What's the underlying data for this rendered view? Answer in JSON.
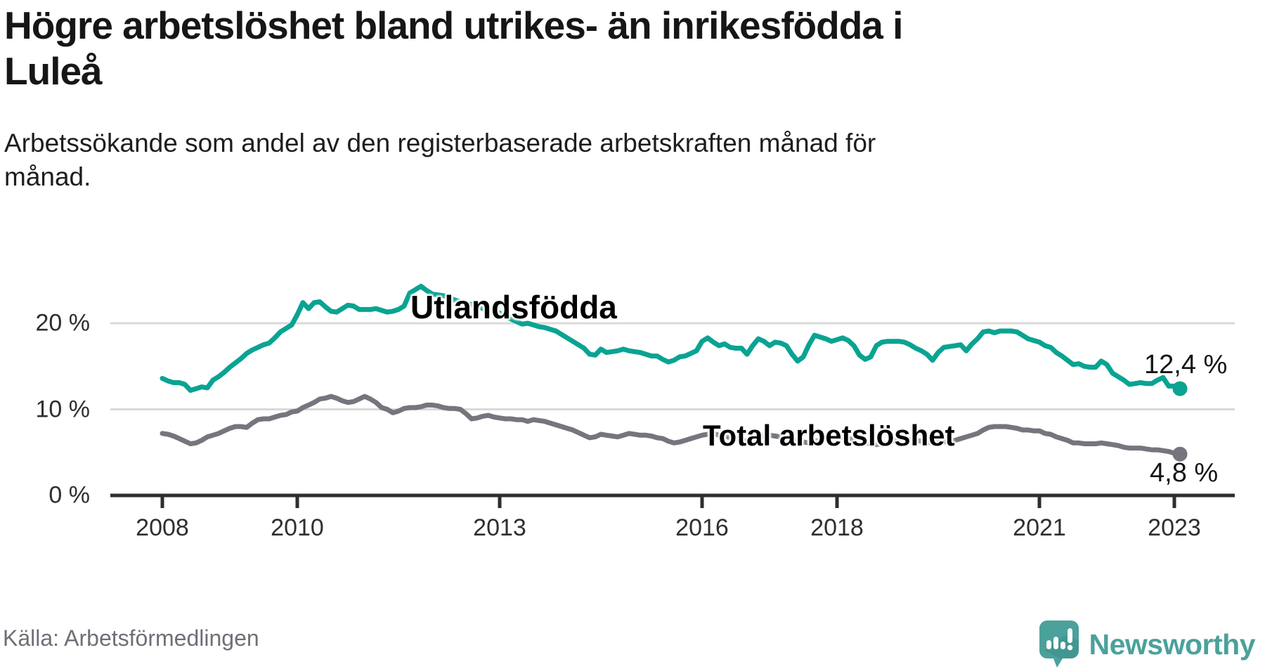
{
  "title": "Högre arbetslöshet bland utrikes- än inrikesfödda i Luleå",
  "subtitle": "Arbetssökande som andel av den registerbaserade arbetskraften månad för månad.",
  "source": "Källa: Arbetsförmedlingen",
  "branding": {
    "name": "Newsworthy",
    "icon": "speech-bubble-bar-chart-icon",
    "color": "#4ba19b"
  },
  "colors": {
    "foreign_born_line": "#0aa392",
    "total_line": "#75757e",
    "axis": "#2e2e2e",
    "gridline": "#d9d9d9",
    "text": "#161616",
    "muted_text": "#6f6f77"
  },
  "chart_data": {
    "type": "line",
    "title": "Högre arbetslöshet bland utrikes- än inrikesfödda i Luleå",
    "subtitle": "Arbetssökande som andel av den registerbaserade arbetskraften månad för månad.",
    "x_unit": "month",
    "x_start": "2008-01",
    "x_end": "2023-02",
    "grid": "horizontal",
    "legend_position": "inline-labels",
    "ylim": [
      0,
      25
    ],
    "y_ticks": [
      {
        "value": 0,
        "label": "0 %"
      },
      {
        "value": 10,
        "label": "10 %"
      },
      {
        "value": 20,
        "label": "20 %"
      }
    ],
    "x_ticks": [
      {
        "year": 2008,
        "label": "2008"
      },
      {
        "year": 2010,
        "label": "2010"
      },
      {
        "year": 2013,
        "label": "2013"
      },
      {
        "year": 2016,
        "label": "2016"
      },
      {
        "year": 2018,
        "label": "2018"
      },
      {
        "year": 2021,
        "label": "2021"
      },
      {
        "year": 2023,
        "label": "2023"
      }
    ],
    "series": [
      {
        "name": "Utlandsfödda",
        "color": "#0aa392",
        "end_label": "12,4 %",
        "last_value": 12.4,
        "values": [
          13.6,
          13.3,
          13.1,
          13.1,
          12.9,
          12.2,
          12.4,
          12.6,
          12.5,
          13.4,
          13.8,
          14.3,
          14.9,
          15.4,
          15.9,
          16.5,
          16.9,
          17.2,
          17.5,
          17.7,
          18.3,
          19.0,
          19.4,
          19.8,
          21.0,
          22.4,
          21.7,
          22.4,
          22.5,
          21.9,
          21.4,
          21.3,
          21.7,
          22.1,
          22.0,
          21.6,
          21.6,
          21.6,
          21.7,
          21.5,
          21.3,
          21.4,
          21.6,
          22.0,
          23.5,
          23.9,
          24.3,
          23.8,
          23.4,
          23.3,
          23.2,
          23.0,
          22.7,
          22.5,
          22.3,
          22.2,
          22.0,
          21.7,
          21.5,
          21.3,
          21.2,
          20.8,
          20.5,
          20.2,
          19.9,
          20.0,
          19.8,
          19.6,
          19.5,
          19.3,
          19.1,
          18.7,
          18.3,
          17.9,
          17.5,
          17.1,
          16.4,
          16.3,
          17.0,
          16.6,
          16.7,
          16.8,
          17.0,
          16.8,
          16.7,
          16.6,
          16.4,
          16.2,
          16.2,
          15.8,
          15.5,
          15.7,
          16.1,
          16.2,
          16.5,
          16.8,
          17.9,
          18.3,
          17.8,
          17.4,
          17.6,
          17.2,
          17.1,
          17.1,
          16.4,
          17.4,
          18.2,
          17.9,
          17.4,
          17.8,
          17.7,
          17.4,
          16.4,
          15.6,
          16.1,
          17.5,
          18.6,
          18.4,
          18.2,
          17.9,
          18.1,
          18.3,
          18.0,
          17.4,
          16.3,
          15.8,
          16.1,
          17.4,
          17.8,
          17.9,
          17.9,
          17.9,
          17.8,
          17.5,
          17.1,
          16.8,
          16.4,
          15.7,
          16.6,
          17.2,
          17.3,
          17.4,
          17.5,
          16.8,
          17.6,
          18.2,
          19.0,
          19.1,
          18.9,
          19.1,
          19.1,
          19.1,
          19.0,
          18.6,
          18.2,
          18.0,
          17.8,
          17.4,
          17.2,
          16.6,
          16.2,
          15.7,
          15.2,
          15.3,
          15.0,
          14.9,
          14.9,
          15.6,
          15.2,
          14.2,
          13.8,
          13.4,
          12.9,
          13.0,
          13.1,
          13.0,
          13.0,
          13.4,
          13.7,
          12.7,
          12.7,
          12.4
        ]
      },
      {
        "name": "Total arbetslöshet",
        "color": "#75757e",
        "end_label": "4,8 %",
        "last_value": 4.8,
        "values": [
          7.2,
          7.1,
          6.9,
          6.6,
          6.3,
          6.0,
          6.1,
          6.4,
          6.8,
          7.0,
          7.2,
          7.5,
          7.8,
          8.0,
          8.0,
          7.9,
          8.4,
          8.8,
          8.9,
          8.9,
          9.1,
          9.3,
          9.4,
          9.7,
          9.8,
          10.2,
          10.5,
          10.8,
          11.2,
          11.3,
          11.5,
          11.3,
          11.0,
          10.8,
          10.9,
          11.2,
          11.5,
          11.2,
          10.8,
          10.2,
          10.0,
          9.6,
          9.8,
          10.1,
          10.2,
          10.2,
          10.3,
          10.5,
          10.5,
          10.4,
          10.2,
          10.1,
          10.1,
          10.0,
          9.5,
          8.9,
          9.0,
          9.2,
          9.3,
          9.1,
          9.0,
          8.9,
          8.9,
          8.8,
          8.8,
          8.6,
          8.8,
          8.7,
          8.6,
          8.4,
          8.2,
          8.0,
          7.8,
          7.6,
          7.3,
          7.0,
          6.7,
          6.8,
          7.1,
          7.0,
          6.9,
          6.8,
          7.0,
          7.2,
          7.1,
          7.0,
          7.0,
          6.9,
          6.7,
          6.6,
          6.3,
          6.1,
          6.2,
          6.4,
          6.6,
          6.8,
          7.0,
          7.1,
          7.2,
          7.0,
          6.9,
          6.7,
          6.6,
          6.5,
          6.3,
          6.5,
          6.7,
          6.9,
          7.0,
          6.9,
          6.8,
          6.6,
          6.5,
          6.3,
          6.2,
          6.1,
          6.3,
          6.4,
          6.6,
          6.8,
          6.8,
          6.7,
          6.6,
          6.5,
          6.3,
          6.1,
          6.0,
          5.9,
          6.0,
          6.1,
          6.3,
          6.5,
          6.6,
          6.5,
          6.4,
          6.3,
          6.2,
          6.1,
          6.2,
          6.2,
          6.3,
          6.4,
          6.6,
          6.8,
          7.0,
          7.2,
          7.6,
          7.9,
          8.0,
          8.0,
          8.0,
          7.9,
          7.8,
          7.6,
          7.6,
          7.5,
          7.5,
          7.2,
          7.1,
          6.8,
          6.6,
          6.4,
          6.1,
          6.1,
          6.0,
          6.0,
          6.0,
          6.1,
          6.0,
          5.9,
          5.8,
          5.6,
          5.5,
          5.5,
          5.5,
          5.4,
          5.3,
          5.3,
          5.2,
          5.1,
          4.9,
          4.8
        ]
      }
    ]
  },
  "series_labels": {
    "foreign_born": "Utlandsfödda",
    "total": "Total arbetslöshet"
  },
  "end_labels": {
    "foreign_born": "12,4 %",
    "total": "4,8 %"
  }
}
